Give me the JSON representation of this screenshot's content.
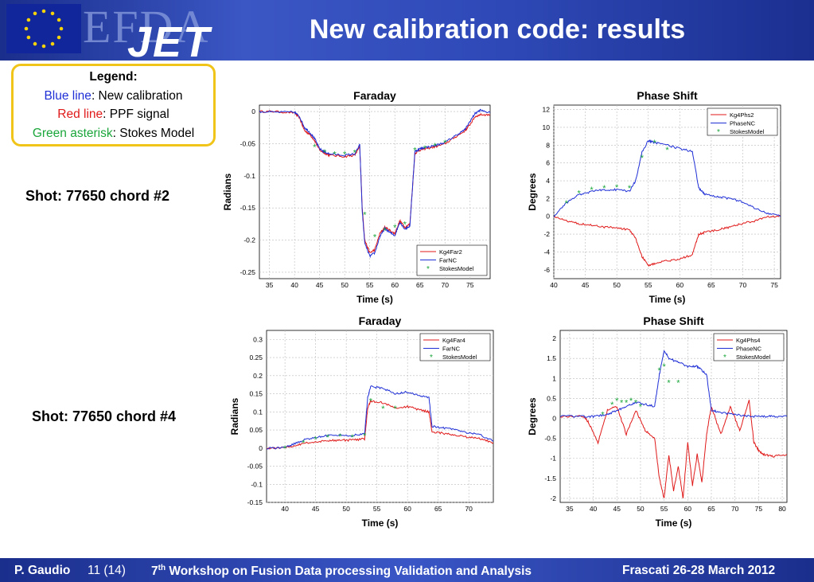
{
  "header": {
    "logo_efda": "EFDA",
    "logo_jet": "JET",
    "title": "New calibration code: results"
  },
  "legend": {
    "title": "Legend:",
    "blue_name": "Blue line",
    "blue_desc": ": New calibration",
    "red_name": "Red line",
    "red_desc": ": PPF signal",
    "green_name": "Green asterisk",
    "green_desc": ": Stokes Model"
  },
  "shots": {
    "shot1": "Shot: 77650 chord #2",
    "shot2": "Shot: 77650 chord #4"
  },
  "footer": {
    "author": "P. Gaudio",
    "page": "11 (14)",
    "workshop_num": "7",
    "workshop_sup": "th",
    "workshop_rest": " Workshop on Fusion Data processing Validation and Analysis",
    "venue": "Frascati 26-28 March 2012"
  },
  "colors": {
    "blue": "#1f2fd6",
    "red": "#e01919",
    "green": "#1aa63a",
    "header": "#1f3aa8",
    "legend_border": "#f0c419"
  },
  "chart_data": [
    {
      "type": "line",
      "title": "Faraday",
      "xlabel": "Time (s)",
      "ylabel": "Radians",
      "xlim": [
        33,
        79
      ],
      "ylim": [
        -0.26,
        0.01
      ],
      "xticks": [
        35,
        40,
        45,
        50,
        55,
        60,
        65,
        70,
        75
      ],
      "yticks": [
        0,
        -0.05,
        -0.1,
        -0.15,
        -0.2,
        -0.25
      ],
      "ytick_labels": [
        "0",
        "-0.05",
        "-0.1",
        "-0.15",
        "-0.2",
        "-0.25"
      ],
      "legend_position": "bottom-right",
      "grid": true,
      "series": [
        {
          "name": "Kg4Far2",
          "color": "#e01919",
          "x": [
            33,
            36,
            40,
            41,
            42,
            43,
            44,
            45,
            46,
            47,
            50,
            52,
            53,
            53.5,
            54,
            55,
            56,
            57,
            58,
            59,
            60,
            61,
            62,
            63,
            64,
            65,
            66,
            68,
            70,
            72,
            74,
            75,
            76,
            77,
            79
          ],
          "y": [
            0,
            0,
            -0.002,
            -0.01,
            -0.03,
            -0.035,
            -0.045,
            -0.06,
            -0.065,
            -0.068,
            -0.07,
            -0.068,
            -0.055,
            -0.15,
            -0.2,
            -0.22,
            -0.215,
            -0.19,
            -0.18,
            -0.185,
            -0.19,
            -0.17,
            -0.18,
            -0.175,
            -0.065,
            -0.06,
            -0.058,
            -0.055,
            -0.05,
            -0.04,
            -0.03,
            -0.02,
            -0.008,
            -0.005,
            -0.005
          ]
        },
        {
          "name": "FarNC",
          "color": "#1f2fd6",
          "x": [
            33,
            36,
            40,
            41,
            42,
            43,
            44,
            45,
            46,
            47,
            50,
            52,
            53,
            53.5,
            54,
            55,
            56,
            57,
            58,
            59,
            60,
            61,
            62,
            63,
            64,
            65,
            66,
            68,
            70,
            72,
            74,
            75,
            76,
            77,
            79
          ],
          "y": [
            0,
            -0.001,
            -0.001,
            -0.008,
            -0.025,
            -0.032,
            -0.042,
            -0.058,
            -0.063,
            -0.066,
            -0.068,
            -0.066,
            -0.052,
            -0.155,
            -0.205,
            -0.225,
            -0.22,
            -0.195,
            -0.182,
            -0.188,
            -0.193,
            -0.172,
            -0.183,
            -0.178,
            -0.062,
            -0.058,
            -0.056,
            -0.053,
            -0.048,
            -0.038,
            -0.028,
            -0.015,
            -0.003,
            0.002,
            -0.002
          ]
        },
        {
          "name": "StokesModel",
          "color": "#1aa63a",
          "marker": "asterisk",
          "x": [
            44,
            46,
            48,
            50,
            52,
            54,
            56,
            58,
            60,
            62,
            64,
            66,
            68,
            70
          ],
          "y": [
            -0.055,
            -0.063,
            -0.066,
            -0.066,
            -0.064,
            -0.16,
            -0.195,
            -0.185,
            -0.18,
            -0.175,
            -0.06,
            -0.057,
            -0.053,
            -0.048
          ]
        }
      ]
    },
    {
      "type": "line",
      "title": "Phase Shift",
      "xlabel": "Time (s)",
      "ylabel": "Degrees",
      "xlim": [
        40,
        76
      ],
      "ylim": [
        -7,
        12.5
      ],
      "xticks": [
        40,
        45,
        50,
        55,
        60,
        65,
        70,
        75
      ],
      "yticks": [
        12,
        10,
        8,
        6,
        4,
        2,
        0,
        -2,
        -4,
        -6
      ],
      "legend_position": "top-right",
      "grid": true,
      "series": [
        {
          "name": "Kg4Phs2",
          "color": "#e01919",
          "x": [
            40,
            42,
            44,
            46,
            48,
            50,
            52,
            53,
            54,
            55,
            56,
            58,
            60,
            62,
            63,
            64,
            66,
            68,
            70,
            72,
            74,
            76
          ],
          "y": [
            0,
            -0.5,
            -0.8,
            -1,
            -1.2,
            -1.3,
            -1.5,
            -2.5,
            -4.5,
            -5.5,
            -5.3,
            -5,
            -4.8,
            -4.3,
            -2,
            -1.8,
            -1.5,
            -1.2,
            -0.8,
            -0.5,
            0,
            0
          ]
        },
        {
          "name": "PhaseNC",
          "color": "#1f2fd6",
          "x": [
            40,
            42,
            44,
            46,
            48,
            50,
            52,
            53,
            54,
            55,
            56,
            58,
            60,
            62,
            63,
            64,
            66,
            68,
            70,
            72,
            74,
            76
          ],
          "y": [
            0,
            1.5,
            2.4,
            2.8,
            3.0,
            3.0,
            2.8,
            4,
            7.2,
            8.5,
            8.3,
            8.0,
            7.6,
            7.3,
            3.2,
            2.5,
            2.2,
            2.0,
            1.6,
            0.9,
            0.3,
            0
          ]
        },
        {
          "name": "StokesModel",
          "color": "#1aa63a",
          "marker": "asterisk",
          "x": [
            42,
            44,
            46,
            48,
            50,
            52,
            54,
            56,
            58
          ],
          "y": [
            1.5,
            2.6,
            3.0,
            3.2,
            3.3,
            3.2,
            6.6,
            8.3,
            7.5
          ]
        }
      ]
    },
    {
      "type": "line",
      "title": "Faraday",
      "xlabel": "Time (s)",
      "ylabel": "Radians",
      "xlim": [
        37,
        74
      ],
      "ylim": [
        -0.15,
        0.325
      ],
      "xticks": [
        40,
        45,
        50,
        55,
        60,
        65,
        70
      ],
      "yticks": [
        0.3,
        0.25,
        0.2,
        0.15,
        0.1,
        0.05,
        0,
        -0.05,
        -0.1,
        -0.15
      ],
      "ytick_labels": [
        "0.3",
        "0.25",
        "0.2",
        "0.15",
        "0.1",
        "0.05",
        "0",
        "-0.05",
        "-0.1",
        "-0.15"
      ],
      "legend_position": "top-right",
      "grid": true,
      "series": [
        {
          "name": "Kg4Far4",
          "color": "#e01919",
          "x": [
            37,
            39,
            41,
            43,
            45,
            47,
            49,
            51,
            53,
            53.5,
            54,
            56,
            58,
            60,
            62,
            63.5,
            64,
            66,
            68,
            70,
            72,
            74
          ],
          "y": [
            0,
            0,
            0.005,
            0.012,
            0.018,
            0.02,
            0.022,
            0.022,
            0.025,
            0.11,
            0.13,
            0.125,
            0.11,
            0.115,
            0.105,
            0.1,
            0.045,
            0.04,
            0.035,
            0.03,
            0.025,
            0.015
          ]
        },
        {
          "name": "FarNC",
          "color": "#1f2fd6",
          "x": [
            37,
            39,
            41,
            43,
            45,
            47,
            49,
            51,
            53,
            53.5,
            54,
            56,
            58,
            60,
            62,
            63.5,
            64,
            66,
            68,
            70,
            72,
            74
          ],
          "y": [
            0,
            0,
            0.008,
            0.022,
            0.03,
            0.035,
            0.036,
            0.035,
            0.04,
            0.14,
            0.17,
            0.165,
            0.15,
            0.155,
            0.145,
            0.14,
            0.06,
            0.055,
            0.05,
            0.042,
            0.035,
            0.02
          ]
        },
        {
          "name": "StokesModel",
          "color": "#1aa63a",
          "marker": "asterisk",
          "x": [
            40,
            43,
            45,
            47,
            49,
            51,
            53,
            54,
            56,
            58
          ],
          "y": [
            0,
            0.015,
            0.025,
            0.03,
            0.032,
            0.03,
            0.035,
            0.13,
            0.11,
            0.11
          ]
        }
      ]
    },
    {
      "type": "line",
      "title": "Phase Shift",
      "xlabel": "Time (s)",
      "ylabel": "Degrees",
      "xlim": [
        33,
        81
      ],
      "ylim": [
        -2.1,
        2.2
      ],
      "xticks": [
        35,
        40,
        45,
        50,
        55,
        60,
        65,
        70,
        75,
        80
      ],
      "yticks": [
        2,
        1.5,
        1,
        0.5,
        0,
        -0.5,
        -1,
        -1.5,
        -2
      ],
      "ytick_labels": [
        "2",
        "1.5",
        "1",
        "0.5",
        "0",
        "-0.5",
        "-1",
        "-1.5",
        "-2"
      ],
      "legend_position": "top-right",
      "grid": true,
      "series": [
        {
          "name": "Kg4Phs4",
          "color": "#e01919",
          "x": [
            33,
            38,
            39,
            41,
            43,
            45,
            47,
            49,
            51,
            53,
            54,
            55,
            56,
            57,
            58,
            59,
            60,
            61,
            62,
            63,
            64,
            65,
            67,
            69,
            71,
            73,
            74,
            75,
            76,
            78,
            81
          ],
          "y": [
            0.05,
            0.05,
            -0.1,
            -0.6,
            0.2,
            0.3,
            -0.4,
            0.2,
            -0.3,
            -0.5,
            -1.5,
            -2,
            -0.9,
            -1.8,
            -1.2,
            -2,
            -0.6,
            -1.7,
            -0.9,
            -1.6,
            -0.4,
            0.3,
            -0.4,
            0.3,
            -0.3,
            0.45,
            -0.6,
            -0.8,
            -0.9,
            -0.95,
            -0.9
          ]
        },
        {
          "name": "PhaseNC",
          "color": "#1f2fd6",
          "x": [
            33,
            38,
            40,
            43,
            45,
            47,
            49,
            51,
            53,
            54,
            55,
            56,
            58,
            60,
            62,
            63,
            64,
            65,
            67,
            70,
            73,
            76,
            78,
            81
          ],
          "y": [
            0.05,
            0.05,
            0.05,
            0.1,
            0.2,
            0.3,
            0.4,
            0.35,
            0.3,
            1.1,
            1.7,
            1.5,
            1.4,
            1.3,
            1.3,
            1.2,
            1.1,
            0.2,
            0.15,
            0.1,
            0.05,
            0.05,
            0.05,
            0.05
          ]
        },
        {
          "name": "StokesModel",
          "color": "#1aa63a",
          "marker": "asterisk",
          "x": [
            42,
            44,
            45,
            46,
            47,
            48,
            49,
            50,
            54,
            55,
            56,
            58
          ],
          "y": [
            0.1,
            0.35,
            0.45,
            0.4,
            0.4,
            0.45,
            0.4,
            0.3,
            1.2,
            1.3,
            0.9,
            0.9
          ]
        }
      ]
    }
  ]
}
